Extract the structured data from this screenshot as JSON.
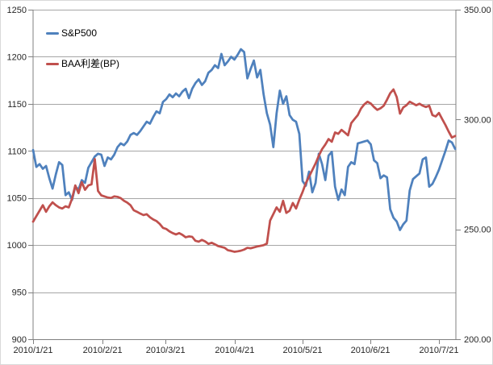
{
  "window": {
    "background": "#ffffff",
    "border_color": "#d9d9d9"
  },
  "colors": {
    "sp500_line": "#4F81BD",
    "baa_line": "#C0504D",
    "gridline": "#A6A6A6",
    "axis": "#808080",
    "tick_text": "#262626"
  },
  "chart_data": {
    "type": "line",
    "title": "",
    "grid": "horizontal",
    "legend_position": "top-left-inside",
    "x_axis": {
      "unit": "trading-day index from 2010/1/21",
      "tick_labels": [
        "2010/1/21",
        "2010/2/21",
        "2010/3/21",
        "2010/4/21",
        "2010/5/21",
        "2010/6/21",
        "2010/7/21"
      ],
      "tick_positions": [
        0,
        21.4,
        40.8,
        62.1,
        83.0,
        103.9,
        125.0
      ]
    },
    "y_axis_left": {
      "min": 900,
      "max": 1250,
      "tick_step": 50,
      "tick_labels": [
        "900",
        "950",
        "1000",
        "1050",
        "1100",
        "1150",
        "1200",
        "1250"
      ]
    },
    "y_axis_right": {
      "min": 200,
      "max": 350,
      "tick_step": 50,
      "tick_labels": [
        "200.00",
        "250.00",
        "300.00",
        "350.00"
      ]
    },
    "series": [
      {
        "name": "S&P500",
        "axis": "left",
        "color": "#4F81BD",
        "stroke_width": 2.75,
        "values": [
          1101,
          1083,
          1086,
          1081,
          1084,
          1071,
          1060,
          1075,
          1088,
          1085,
          1053,
          1056,
          1048,
          1062,
          1059,
          1069,
          1066,
          1082,
          1088,
          1094,
          1097,
          1096,
          1084,
          1093,
          1091,
          1096,
          1104,
          1108,
          1106,
          1110,
          1117,
          1119,
          1117,
          1121,
          1126,
          1131,
          1129,
          1136,
          1142,
          1140,
          1152,
          1155,
          1160,
          1157,
          1161,
          1158,
          1163,
          1166,
          1156,
          1166,
          1172,
          1176,
          1170,
          1174,
          1183,
          1186,
          1191,
          1188,
          1203,
          1191,
          1195,
          1200,
          1197,
          1202,
          1208,
          1205,
          1177,
          1187,
          1196,
          1178,
          1186,
          1160,
          1140,
          1128,
          1104,
          1140,
          1164,
          1150,
          1158,
          1138,
          1133,
          1131,
          1118,
          1068,
          1063,
          1078,
          1056,
          1066,
          1097,
          1086,
          1069,
          1095,
          1099,
          1062,
          1048,
          1059,
          1053,
          1083,
          1088,
          1086,
          1108,
          1109,
          1110,
          1111,
          1107,
          1090,
          1087,
          1071,
          1074,
          1072,
          1038,
          1029,
          1025,
          1016,
          1022,
          1026,
          1058,
          1070,
          1073,
          1076,
          1091,
          1093,
          1062,
          1065,
          1072,
          1080,
          1090,
          1100,
          1111,
          1109,
          1102
        ]
      },
      {
        "name": "BAA利差(BP)",
        "axis": "right",
        "color": "#C0504D",
        "stroke_width": 2.75,
        "values": [
          253.5,
          256,
          258.5,
          261,
          258,
          260.5,
          262.3,
          261,
          260,
          259.5,
          260.5,
          260,
          264,
          270,
          266.5,
          271.5,
          268,
          270,
          270.5,
          282,
          267.5,
          265.5,
          265,
          264.5,
          264.3,
          265,
          264.8,
          264.2,
          263,
          262.2,
          261,
          258.7,
          258,
          257.2,
          256.5,
          256.9,
          255.5,
          254.5,
          253.8,
          252.5,
          250.7,
          250.2,
          249.1,
          248.3,
          247.7,
          248.3,
          247.5,
          246.4,
          246.8,
          246.6,
          244.8,
          244.4,
          245.2,
          244.5,
          243.4,
          243.9,
          243.2,
          242.4,
          242,
          241.6,
          240.5,
          240.2,
          239.8,
          240,
          240.3,
          240.8,
          241.6,
          241.4,
          241.8,
          242.2,
          242.5,
          242.8,
          243.5,
          254,
          257,
          260,
          258,
          263,
          257.5,
          258.5,
          262,
          259.5,
          263.5,
          267,
          271,
          274,
          277,
          280,
          283.5,
          286.5,
          288.6,
          291.1,
          289.9,
          294.1,
          293.5,
          295.3,
          294.1,
          292.8,
          298.4,
          300.2,
          302,
          305,
          306.9,
          308.1,
          307.3,
          305.7,
          304.4,
          305.1,
          306.3,
          309,
          312,
          313.7,
          310.2,
          302.7,
          305.5,
          306.5,
          308.1,
          307.3,
          306.5,
          307.2,
          306.3,
          305.7,
          306.3,
          302,
          301.4,
          303,
          300.2,
          297.5,
          294.5,
          291.8,
          292.5
        ]
      }
    ]
  }
}
